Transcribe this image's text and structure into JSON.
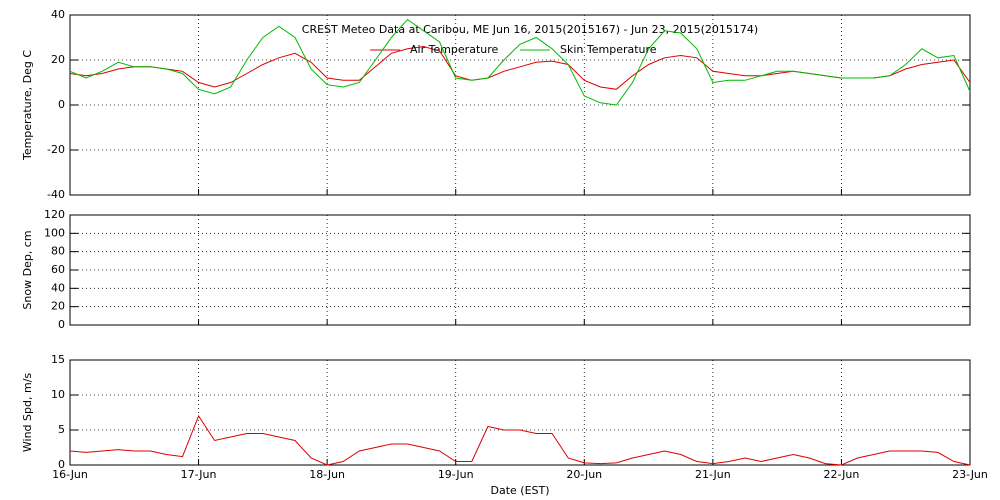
{
  "chart_data": [
    {
      "type": "line",
      "title": "CREST Meteo Data at Caribou, ME   Jun 16, 2015(2015167) - Jun 23, 2015(2015174)",
      "y_label": "Temperature, Deg C",
      "legend": "top",
      "x": [
        0,
        0.125,
        0.25,
        0.375,
        0.5,
        0.625,
        0.75,
        0.875,
        1,
        1.125,
        1.25,
        1.375,
        1.5,
        1.625,
        1.75,
        1.875,
        2,
        2.125,
        2.25,
        2.375,
        2.5,
        2.625,
        2.75,
        2.875,
        3,
        3.125,
        3.25,
        3.375,
        3.5,
        3.625,
        3.75,
        3.875,
        4,
        4.125,
        4.25,
        4.375,
        4.5,
        4.625,
        4.75,
        4.875,
        5,
        5.125,
        5.25,
        5.375,
        5.5,
        5.625,
        5.75,
        5.875,
        6,
        6.125,
        6.25,
        6.375,
        6.5,
        6.625,
        6.75,
        6.875,
        7
      ],
      "series": [
        {
          "name": "Air Temperature",
          "color": "#dd0000",
          "values": [
            14,
            13,
            14,
            16,
            17,
            17,
            16,
            15,
            10,
            8,
            10,
            14,
            18,
            21,
            23,
            19,
            12,
            11,
            11,
            17,
            23,
            25,
            26,
            24,
            13,
            11,
            12,
            15,
            17,
            19,
            19.5,
            18,
            11,
            8,
            7,
            13,
            18,
            21,
            22,
            21,
            15,
            14,
            13,
            13,
            14,
            15,
            14,
            13,
            12,
            12,
            12,
            13,
            16,
            18,
            19,
            20,
            10
          ]
        },
        {
          "name": "Skin Temperature",
          "color": "#00bb00",
          "values": [
            15,
            12,
            15,
            19,
            17,
            17,
            16,
            14,
            7,
            5,
            8,
            20,
            30,
            35,
            30,
            16,
            9,
            8,
            10,
            20,
            30,
            38,
            33,
            28,
            12,
            11,
            12,
            20,
            27,
            30,
            25,
            18,
            4,
            1,
            0,
            10,
            25,
            33,
            32,
            25,
            10,
            11,
            11,
            13,
            15,
            15,
            14,
            13,
            12,
            12,
            12,
            13,
            18,
            25,
            21,
            22,
            6
          ]
        }
      ],
      "xlim": [
        0,
        7
      ],
      "xticks": [
        0,
        1,
        2,
        3,
        4,
        5,
        6,
        7
      ],
      "ylim": [
        -40,
        40
      ],
      "yticks": [
        -40,
        -20,
        0,
        20,
        40
      ],
      "grid": true
    },
    {
      "type": "line",
      "y_label": "Snow Dep, cm",
      "series": [],
      "xlim": [
        0,
        7
      ],
      "xticks": [
        0,
        1,
        2,
        3,
        4,
        5,
        6,
        7
      ],
      "ylim": [
        0,
        120
      ],
      "yticks": [
        0,
        20,
        40,
        60,
        80,
        100,
        120
      ],
      "grid": true
    },
    {
      "type": "line",
      "y_label": "Wind Spd, m/s",
      "x_label": "Date (EST)",
      "x": [
        0,
        0.125,
        0.25,
        0.375,
        0.5,
        0.625,
        0.75,
        0.875,
        1,
        1.125,
        1.25,
        1.375,
        1.5,
        1.625,
        1.75,
        1.875,
        2,
        2.125,
        2.25,
        2.375,
        2.5,
        2.625,
        2.75,
        2.875,
        3,
        3.125,
        3.25,
        3.375,
        3.5,
        3.625,
        3.75,
        3.875,
        4,
        4.125,
        4.25,
        4.375,
        4.5,
        4.625,
        4.75,
        4.875,
        5,
        5.125,
        5.25,
        5.375,
        5.5,
        5.625,
        5.75,
        5.875,
        6,
        6.125,
        6.25,
        6.375,
        6.5,
        6.625,
        6.75,
        6.875,
        7
      ],
      "series": [
        {
          "color": "#dd0000",
          "values": [
            2,
            1.8,
            2,
            2.2,
            2,
            2,
            1.5,
            1.2,
            7,
            3.5,
            4,
            4.5,
            4.5,
            4,
            3.5,
            1,
            0,
            0.5,
            2,
            2.5,
            3,
            3,
            2.5,
            2,
            0.5,
            0.5,
            5.5,
            5,
            5,
            4.5,
            4.5,
            1,
            0.3,
            0.2,
            0.3,
            1,
            1.5,
            2,
            1.5,
            0.5,
            0.2,
            0.5,
            1,
            0.5,
            1,
            1.5,
            1,
            0.2,
            0,
            1,
            1.5,
            2,
            2,
            2,
            1.8,
            0.5,
            0
          ]
        }
      ],
      "xlim": [
        0,
        7
      ],
      "xticks": [
        {
          "value": 0,
          "label": "16-Jun"
        },
        {
          "value": 1,
          "label": "17-Jun"
        },
        {
          "value": 2,
          "label": "18-Jun"
        },
        {
          "value": 3,
          "label": "19-Jun"
        },
        {
          "value": 4,
          "label": "20-Jun"
        },
        {
          "value": 5,
          "label": "21-Jun"
        },
        {
          "value": 6,
          "label": "22-Jun"
        },
        {
          "value": 7,
          "label": "23-Jun"
        }
      ],
      "ylim": [
        0,
        15
      ],
      "yticks": [
        0,
        5,
        10,
        15
      ],
      "grid": true
    }
  ]
}
